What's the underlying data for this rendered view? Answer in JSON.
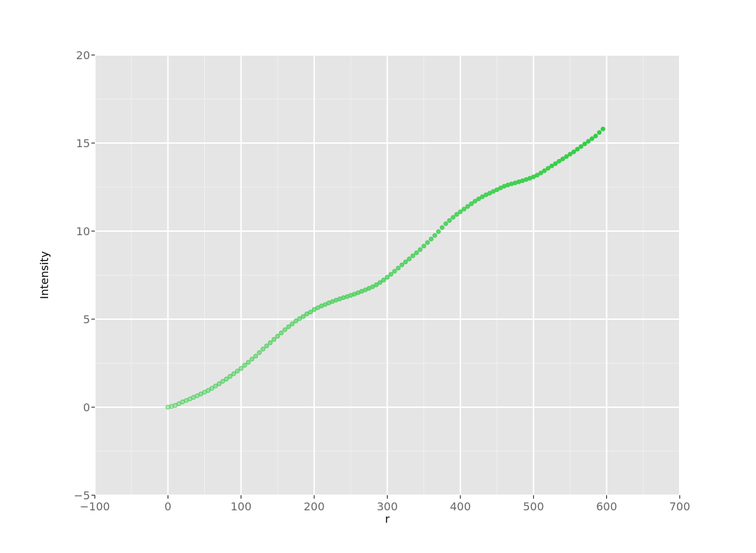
{
  "chart_data": {
    "type": "scatter",
    "title": "",
    "xlabel": "r",
    "ylabel": "Intensity",
    "xlim": [
      -100,
      700
    ],
    "ylim": [
      -5,
      20
    ],
    "grid": true,
    "x_ticks": [
      "−100",
      "0",
      "100",
      "200",
      "300",
      "400",
      "500",
      "600",
      "700"
    ],
    "y_ticks": [
      "−5",
      "0",
      "5",
      "10",
      "15",
      "20"
    ],
    "series": [
      {
        "color": "#2ecc40",
        "x": [
          0,
          5,
          10,
          15,
          20,
          25,
          30,
          35,
          40,
          45,
          50,
          55,
          60,
          65,
          70,
          75,
          80,
          85,
          90,
          95,
          100,
          105,
          110,
          115,
          120,
          125,
          130,
          135,
          140,
          145,
          150,
          155,
          160,
          165,
          170,
          175,
          180,
          185,
          190,
          195,
          200,
          205,
          210,
          215,
          220,
          225,
          230,
          235,
          240,
          245,
          250,
          255,
          260,
          265,
          270,
          275,
          280,
          285,
          290,
          295,
          300,
          305,
          310,
          315,
          320,
          325,
          330,
          335,
          340,
          345,
          350,
          355,
          360,
          365,
          370,
          375,
          380,
          385,
          390,
          395,
          400,
          405,
          410,
          415,
          420,
          425,
          430,
          435,
          440,
          445,
          450,
          455,
          460,
          465,
          470,
          475,
          480,
          485,
          490,
          495,
          500,
          505,
          510,
          515,
          520,
          525,
          530,
          535,
          540,
          545,
          550,
          555,
          560,
          565,
          570,
          575,
          580,
          585,
          590,
          595
        ],
        "y": [
          0.0,
          0.05,
          0.1,
          0.2,
          0.3,
          0.38,
          0.47,
          0.56,
          0.65,
          0.75,
          0.85,
          0.95,
          1.07,
          1.2,
          1.33,
          1.47,
          1.6,
          1.75,
          1.9,
          2.05,
          2.2,
          2.38,
          2.55,
          2.73,
          2.9,
          3.1,
          3.3,
          3.48,
          3.66,
          3.85,
          4.03,
          4.22,
          4.4,
          4.57,
          4.73,
          4.9,
          5.03,
          5.15,
          5.3,
          5.4,
          5.55,
          5.65,
          5.75,
          5.83,
          5.92,
          6.0,
          6.08,
          6.15,
          6.22,
          6.28,
          6.35,
          6.42,
          6.5,
          6.58,
          6.66,
          6.75,
          6.84,
          6.95,
          7.08,
          7.22,
          7.38,
          7.55,
          7.72,
          7.9,
          8.08,
          8.25,
          8.42,
          8.6,
          8.77,
          8.95,
          9.15,
          9.35,
          9.55,
          9.75,
          9.97,
          10.2,
          10.42,
          10.6,
          10.78,
          10.95,
          11.1,
          11.25,
          11.4,
          11.55,
          11.7,
          11.83,
          11.95,
          12.06,
          12.15,
          12.25,
          12.35,
          12.45,
          12.55,
          12.62,
          12.68,
          12.74,
          12.8,
          12.86,
          12.93,
          13.0,
          13.08,
          13.18,
          13.3,
          13.43,
          13.57,
          13.7,
          13.83,
          13.97,
          14.1,
          14.23,
          14.37,
          14.5,
          14.65,
          14.8,
          14.95,
          15.1,
          15.25,
          15.4,
          15.6,
          15.8
        ]
      }
    ]
  }
}
